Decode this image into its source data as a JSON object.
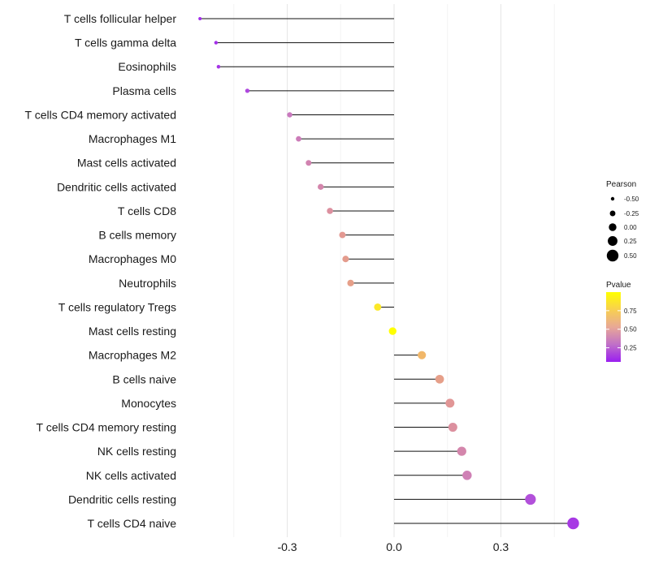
{
  "chart_data": {
    "type": "lollipop",
    "title": "",
    "xlabel": "",
    "ylabel": "",
    "xlim": [
      -0.55,
      0.58
    ],
    "xticks": [
      -0.3,
      0.0,
      0.3
    ],
    "xtick_labels": [
      "-0.3",
      "0.0",
      "0.3"
    ],
    "categories": [
      "T cells follicular helper",
      "T cells gamma delta",
      "Eosinophils",
      "Plasma cells",
      "T cells CD4 memory activated",
      "Macrophages M1",
      "Mast cells activated",
      "Dendritic cells activated",
      "T cells CD8",
      "B cells memory",
      "Macrophages M0",
      "Neutrophils",
      "T cells regulatory  Tregs ",
      "Mast cells resting",
      "Macrophages M2",
      "B cells naive",
      "Monocytes",
      "T cells CD4 memory resting",
      "NK cells resting",
      "NK cells activated",
      "Dendritic cells resting",
      "T cells CD4 naive"
    ],
    "pearson": [
      -0.545,
      -0.5,
      -0.493,
      -0.412,
      -0.293,
      -0.268,
      -0.24,
      -0.206,
      -0.18,
      -0.145,
      -0.136,
      -0.122,
      -0.046,
      -0.004,
      0.078,
      0.128,
      0.157,
      0.165,
      0.19,
      0.205,
      0.383,
      0.503
    ],
    "pvalue": [
      0.06,
      0.08,
      0.1,
      0.18,
      0.42,
      0.44,
      0.48,
      0.5,
      0.56,
      0.62,
      0.64,
      0.66,
      0.95,
      1.0,
      0.8,
      0.66,
      0.6,
      0.56,
      0.5,
      0.46,
      0.22,
      0.12
    ],
    "legend_size": {
      "title": "Pearson",
      "labels": [
        "-0.50",
        "-0.25",
        "0.00",
        "0.25",
        "0.50"
      ],
      "values": [
        -0.5,
        -0.25,
        0.0,
        0.25,
        0.5
      ]
    },
    "legend_color": {
      "title": "Pvalue",
      "labels": [
        "0.75",
        "0.50",
        "0.25"
      ],
      "values": [
        0.75,
        0.5,
        0.25
      ],
      "colors": [
        "#9a1ef0",
        "#c070c8",
        "#e8a896",
        "#f8d050",
        "#ffff00"
      ]
    }
  }
}
